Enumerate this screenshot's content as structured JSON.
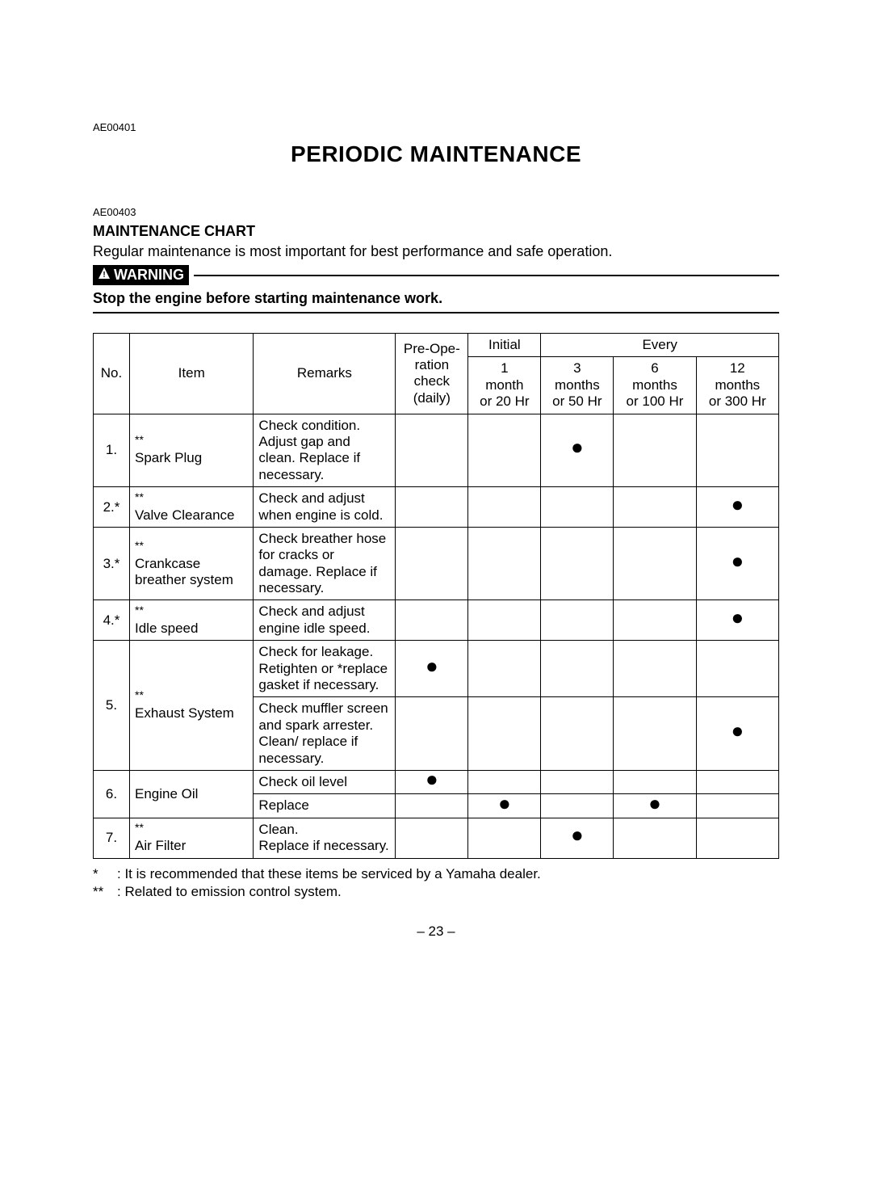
{
  "refA": "AE00401",
  "title": "PERIODIC MAINTENANCE",
  "refB": "AE00403",
  "maintenance_chart_label": "MAINTENANCE CHART",
  "intro": "Regular maintenance is most important for best performance and safe operation.",
  "warning_label": "WARNING",
  "warning_text": "Stop the engine before starting maintenance work.",
  "headers": {
    "no": "No.",
    "item": "Item",
    "remarks": "Remarks",
    "pre": "Pre-Ope-\nration\ncheck\n(daily)",
    "initial": "Initial",
    "every": "Every",
    "c1": "1\nmonth\nor 20 Hr",
    "c3": "3\nmonths\nor 50 Hr",
    "c6": "6\nmonths\nor 100 Hr",
    "c12": "12\nmonths\nor 300 Hr"
  },
  "rows": [
    {
      "no": "1.",
      "star": "**",
      "item": "Spark Plug",
      "remarks": "Check condition. Adjust gap and clean. Replace if necessary.",
      "dots": [
        false,
        false,
        true,
        false,
        false
      ]
    },
    {
      "no": "2.*",
      "star": "**",
      "item": "Valve Clearance",
      "remarks": "Check and adjust when engine is cold.",
      "dots": [
        false,
        false,
        false,
        false,
        true
      ]
    },
    {
      "no": "3.*",
      "star": "**",
      "item": "Crankcase breather system",
      "remarks": "Check breather hose for cracks or damage. Replace if necessary.",
      "dots": [
        false,
        false,
        false,
        false,
        true
      ]
    },
    {
      "no": "4.*",
      "star": "**",
      "item": "Idle speed",
      "remarks": "Check and adjust engine idle speed.",
      "dots": [
        false,
        false,
        false,
        false,
        true
      ]
    }
  ],
  "row5": {
    "no": "5.",
    "star": "**",
    "item": "Exhaust System",
    "remarksA": "Check for leakage. Retighten or *replace gasket if necessary.",
    "remarksB": "Check muffler screen and spark arrester. Clean/ replace if necessary.",
    "dotsA": [
      true,
      false,
      false,
      false,
      false
    ],
    "dotsB": [
      false,
      false,
      false,
      false,
      true
    ]
  },
  "row6": {
    "no": "6.",
    "item": "Engine Oil",
    "remarksA": "Check oil level",
    "remarksB": "Replace",
    "dotsA": [
      true,
      false,
      false,
      false,
      false
    ],
    "dotsB": [
      false,
      true,
      false,
      true,
      false
    ]
  },
  "row7": {
    "no": "7.",
    "star": "**",
    "item": "Air Filter",
    "remarks": "Clean.\nReplace if necessary.",
    "dots": [
      false,
      false,
      true,
      false,
      false
    ]
  },
  "footnote1_sym": "*",
  "footnote1": ": It is recommended that these items be serviced by a Yamaha dealer.",
  "footnote2_sym": "**",
  "footnote2": ": Related to emission control system.",
  "page_number": "– 23 –",
  "col_widths": {
    "no": "44px",
    "item": "150px",
    "remarks": "172px",
    "pre": "88px",
    "initial": "88px",
    "c3": "88px",
    "c6": "100px",
    "c12": "100px"
  }
}
